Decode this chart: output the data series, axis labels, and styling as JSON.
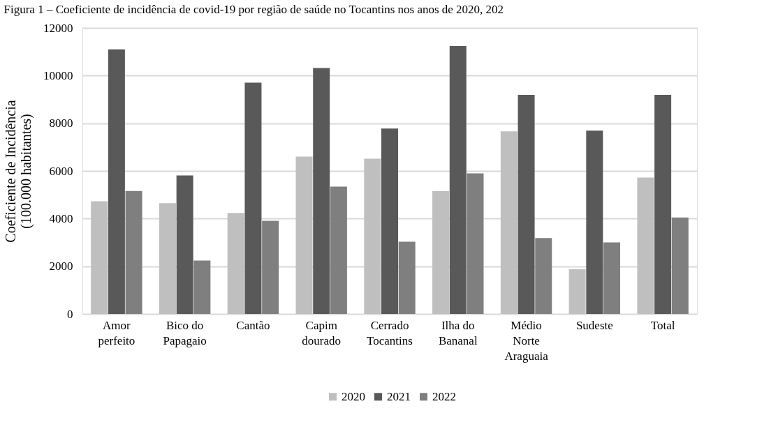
{
  "chart_data": {
    "type": "bar",
    "title": "Figura 1 – Coeficiente de incidência de covid-19 por região de saúde no Tocantins nos anos de 2020, 202",
    "ylabel": "Coeficiente de Incidência (100.000 habitantes)",
    "categories": [
      "Amor perfeito",
      "Bico do Papagaio",
      "Cantão",
      "Capim dourado",
      "Cerrado Tocantins",
      "Ilha do Bananal",
      "Médio Norte Araguaia",
      "Sudeste",
      "Total"
    ],
    "series": [
      {
        "name": "2020",
        "color": "#bfbfbf",
        "values": [
          4730,
          4650,
          4240,
          6600,
          6510,
          5150,
          7660,
          1880,
          5720
        ]
      },
      {
        "name": "2021",
        "color": "#595959",
        "values": [
          11100,
          5810,
          9700,
          10320,
          7780,
          11240,
          9190,
          7690,
          9190
        ]
      },
      {
        "name": "2022",
        "color": "#7f7f7f",
        "values": [
          5160,
          2240,
          3910,
          5340,
          3030,
          5900,
          3180,
          3000,
          4050
        ]
      }
    ],
    "ylim": [
      0,
      12000
    ],
    "yticks": [
      0,
      2000,
      4000,
      6000,
      8000,
      10000,
      12000
    ],
    "grid": "y",
    "legend": "bottom"
  }
}
